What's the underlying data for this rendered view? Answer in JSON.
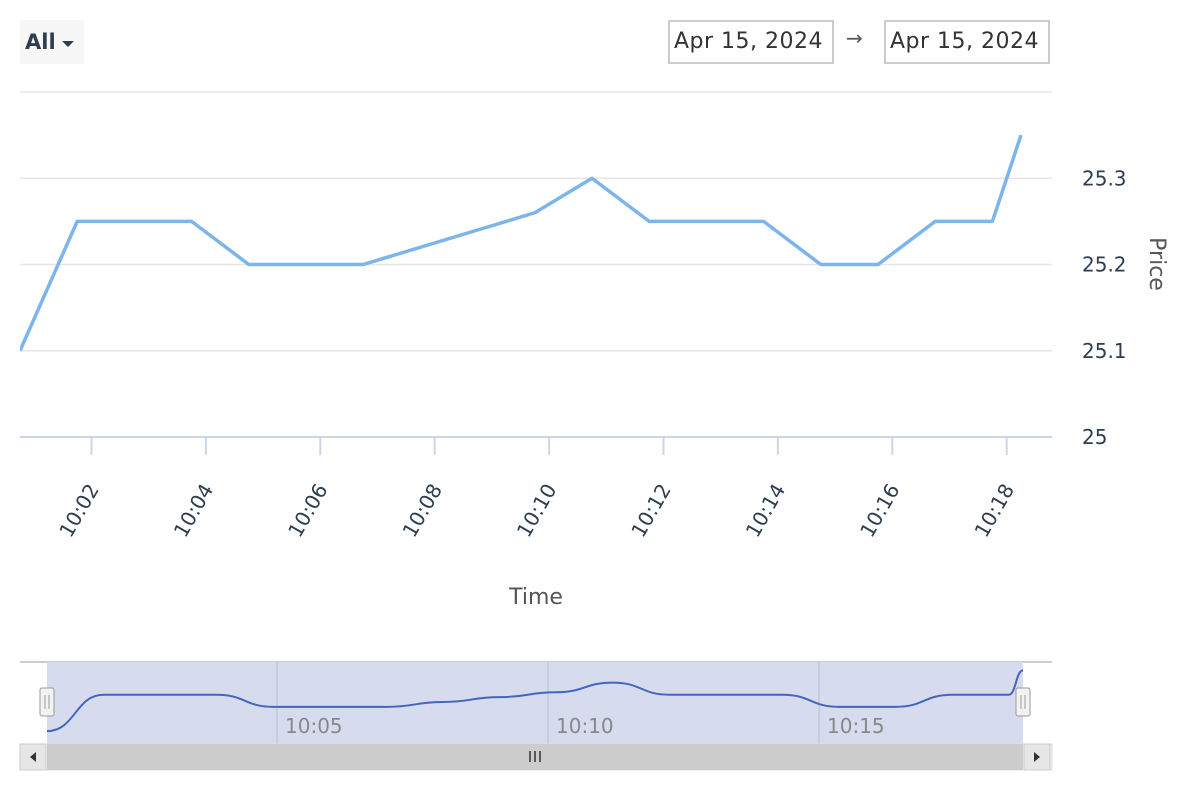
{
  "range_selector": {
    "label": "All"
  },
  "date_range": {
    "from": "Apr 15, 2024",
    "to": "Apr 15, 2024",
    "separator": "→"
  },
  "colors": {
    "line": "#7cb5ec",
    "navigator_line": "#4466bb",
    "navigator_mask": "#d6dcee",
    "grid": "#e6e6e6",
    "axis": "#ccd6eb"
  },
  "chart_data": {
    "type": "line",
    "xlabel": "Time",
    "ylabel": "Price",
    "x_unit": "minutes after 10:00",
    "ylim": [
      25,
      25.4
    ],
    "yticks": [
      25,
      25.1,
      25.2,
      25.3
    ],
    "ytick_labels": [
      "25",
      "25.1",
      "25.2",
      "25.3"
    ],
    "xticks": [
      2,
      4,
      6,
      8,
      10,
      12,
      14,
      16,
      18
    ],
    "xtick_labels": [
      "10:02",
      "10:04",
      "10:06",
      "10:08",
      "10:10",
      "10:12",
      "10:14",
      "10:16",
      "10:18"
    ],
    "series": [
      {
        "x": [
          0.75,
          1.75,
          2.75,
          3.75,
          4.75,
          5.75,
          6.75,
          7.75,
          8.75,
          9.75,
          10.75,
          11.75,
          12.75,
          13.75,
          14.75,
          15.75,
          16.75,
          17.75,
          18.25
        ],
        "values": [
          25.1,
          25.25,
          25.25,
          25.25,
          25.2,
          25.2,
          25.2,
          25.22,
          25.24,
          25.26,
          25.3,
          25.25,
          25.25,
          25.25,
          25.2,
          25.2,
          25.25,
          25.25,
          25.35
        ]
      }
    ],
    "navigator": {
      "tick_labels": [
        "10:05",
        "10:10",
        "10:15"
      ]
    }
  }
}
